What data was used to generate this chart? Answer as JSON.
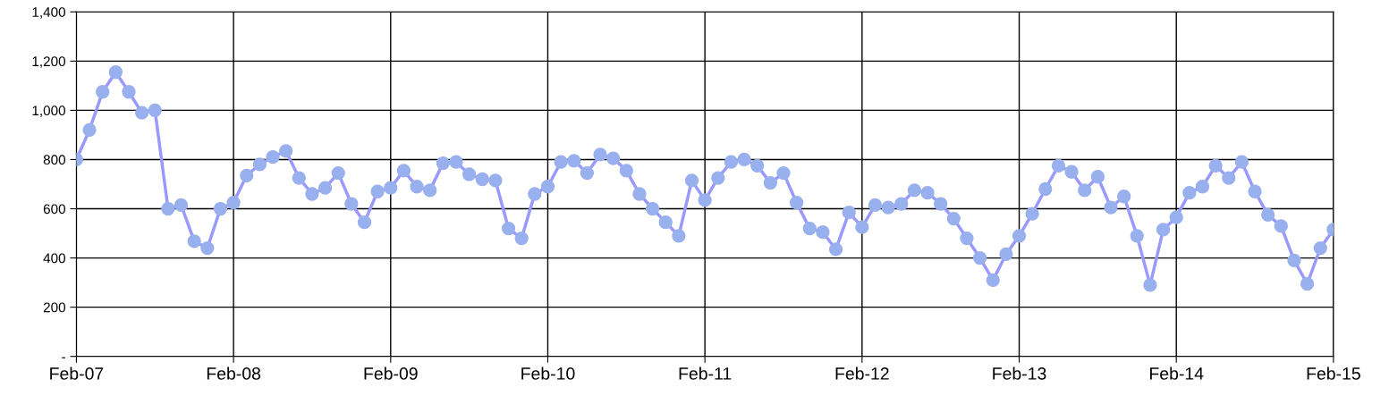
{
  "chart_data": {
    "type": "line",
    "marker": "circle",
    "line_style": "solid",
    "grid": true,
    "x": [
      "2007-02",
      "2007-03",
      "2007-04",
      "2007-05",
      "2007-06",
      "2007-07",
      "2007-08",
      "2007-09",
      "2007-10",
      "2007-11",
      "2007-12",
      "2008-01",
      "2008-02",
      "2008-03",
      "2008-04",
      "2008-05",
      "2008-06",
      "2008-07",
      "2008-08",
      "2008-09",
      "2008-10",
      "2008-11",
      "2008-12",
      "2009-01",
      "2009-02",
      "2009-03",
      "2009-04",
      "2009-05",
      "2009-06",
      "2009-07",
      "2009-08",
      "2009-09",
      "2009-10",
      "2009-11",
      "2009-12",
      "2010-01",
      "2010-02",
      "2010-03",
      "2010-04",
      "2010-05",
      "2010-06",
      "2010-07",
      "2010-08",
      "2010-09",
      "2010-10",
      "2010-11",
      "2010-12",
      "2011-01",
      "2011-02",
      "2011-03",
      "2011-04",
      "2011-05",
      "2011-06",
      "2011-07",
      "2011-08",
      "2011-09",
      "2011-10",
      "2011-11",
      "2011-12",
      "2012-01",
      "2012-02",
      "2012-03",
      "2012-04",
      "2012-05",
      "2012-06",
      "2012-07",
      "2012-08",
      "2012-09",
      "2012-10",
      "2012-11",
      "2012-12",
      "2013-01",
      "2013-02",
      "2013-03",
      "2013-04",
      "2013-05",
      "2013-06",
      "2013-07",
      "2013-08",
      "2013-09",
      "2013-10",
      "2013-11",
      "2013-12",
      "2014-01",
      "2014-02",
      "2014-03",
      "2014-04",
      "2014-05",
      "2014-06",
      "2014-07",
      "2014-08",
      "2014-09",
      "2014-10",
      "2014-11",
      "2014-12",
      "2015-01",
      "2015-02"
    ],
    "series": [
      {
        "color": "#9999ff",
        "values": [
          800,
          920,
          1075,
          1155,
          1075,
          990,
          1000,
          600,
          615,
          468,
          440,
          600,
          625,
          735,
          780,
          810,
          835,
          725,
          660,
          685,
          745,
          620,
          545,
          670,
          685,
          755,
          690,
          675,
          785,
          790,
          740,
          720,
          715,
          520,
          480,
          660,
          690,
          790,
          795,
          745,
          820,
          805,
          755,
          660,
          600,
          545,
          490,
          715,
          635,
          725,
          790,
          800,
          775,
          705,
          745,
          625,
          520,
          505,
          435,
          585,
          525,
          615,
          605,
          620,
          675,
          665,
          620,
          560,
          480,
          400,
          310,
          415,
          490,
          580,
          680,
          775,
          750,
          675,
          730,
          605,
          650,
          490,
          290,
          515,
          565,
          665,
          690,
          775,
          725,
          790,
          670,
          575,
          530,
          390,
          295,
          440,
          515
        ]
      }
    ],
    "xlim": [
      "2007-02",
      "2015-02"
    ],
    "xticks": [
      {
        "value": "2007-02",
        "label": "Feb-07"
      },
      {
        "value": "2008-02",
        "label": "Feb-08"
      },
      {
        "value": "2009-02",
        "label": "Feb-09"
      },
      {
        "value": "2010-02",
        "label": "Feb-10"
      },
      {
        "value": "2011-02",
        "label": "Feb-11"
      },
      {
        "value": "2012-02",
        "label": "Feb-12"
      },
      {
        "value": "2013-02",
        "label": "Feb-13"
      },
      {
        "value": "2014-02",
        "label": "Feb-14"
      },
      {
        "value": "2015-02",
        "label": "Feb-15"
      }
    ],
    "ylim": [
      0,
      1400
    ],
    "yticks": [
      {
        "value": 0,
        "label": "-"
      },
      {
        "value": 200,
        "label": "200"
      },
      {
        "value": 400,
        "label": "400"
      },
      {
        "value": 600,
        "label": "600"
      },
      {
        "value": 800,
        "label": "800"
      },
      {
        "value": 1000,
        "label": "1,000"
      },
      {
        "value": 1200,
        "label": "1,200"
      },
      {
        "value": 1400,
        "label": "1,400"
      }
    ]
  }
}
